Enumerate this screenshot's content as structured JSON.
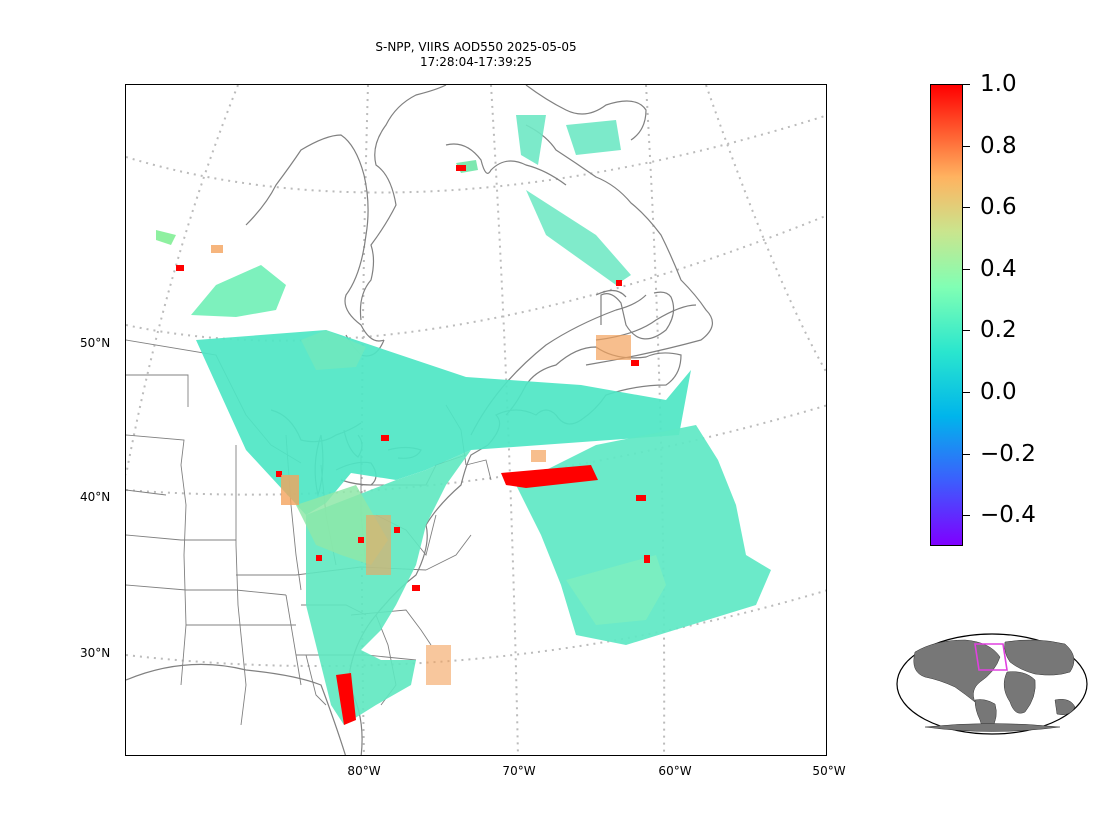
{
  "title_line1": "S-NPP, VIIRS AOD550 2025-05-05",
  "title_line2": "17:28:04-17:39:25",
  "lat_labels": [
    "50°N",
    "40°N",
    "30°N"
  ],
  "lon_labels": [
    "80°W",
    "70°W",
    "60°W",
    "50°W"
  ],
  "colorbar": {
    "colormap": "rainbow",
    "min": -0.5,
    "max": 1.0,
    "tick_labels": [
      "1.0",
      "0.8",
      "0.6",
      "0.4",
      "0.2",
      "0.0",
      "−0.2",
      "−0.4"
    ]
  },
  "colors": {
    "aod_low": "#40e0d0",
    "aod_mid": "#9cf08a",
    "aod_high": "#ff0000",
    "coastline": "#808080",
    "graticule": "#bbbbbb",
    "inset_land": "#777777",
    "inset_region": "#e040e0"
  }
}
